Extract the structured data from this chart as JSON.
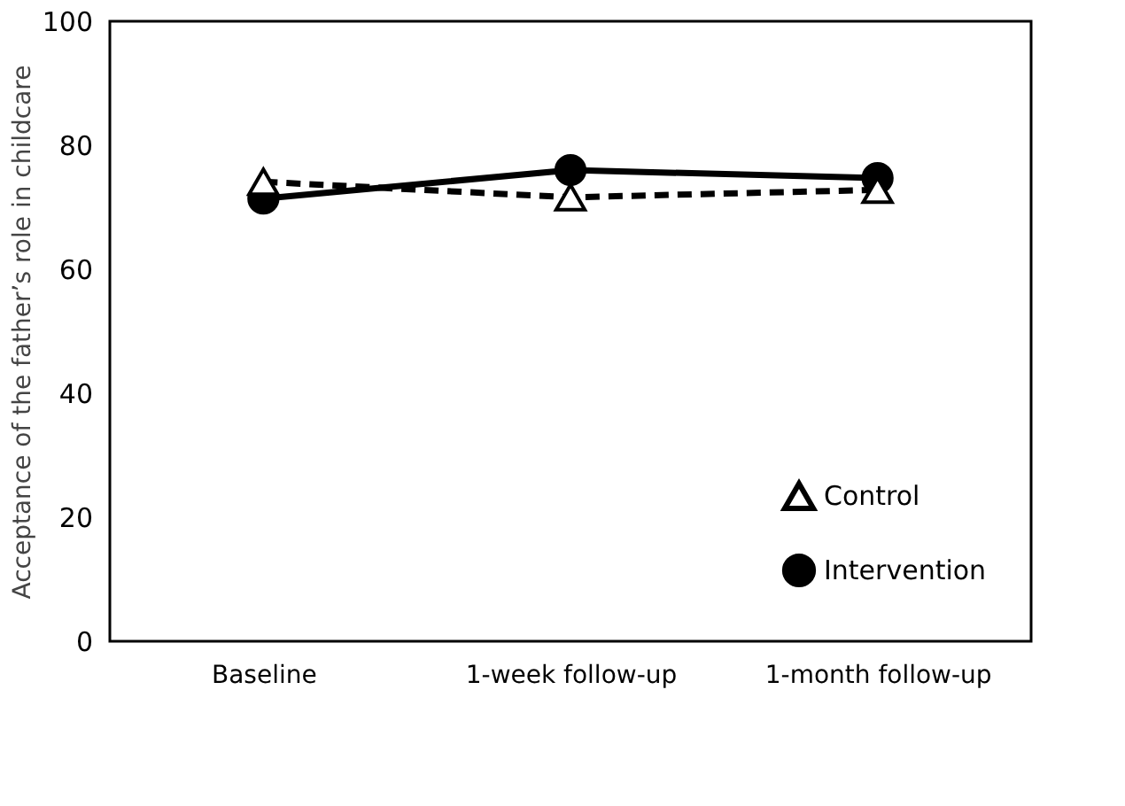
{
  "chart_data": {
    "type": "line",
    "ylabel": "Acceptance of the father’s role in childcare",
    "categories": [
      "Baseline",
      "1-week follow-up",
      "1-month follow-up"
    ],
    "series": [
      {
        "name": "Control",
        "color": "#000000",
        "values": [
          74.1,
          71.6,
          72.8
        ],
        "marker": "triangle",
        "line_style": "dashed"
      },
      {
        "name": "Intervention",
        "color": "#000000",
        "values": [
          71.4,
          76.0,
          74.7
        ],
        "marker": "circle",
        "line_style": "solid"
      }
    ],
    "ylim": [
      0,
      100
    ],
    "yticks": [
      0,
      20,
      40,
      60,
      80,
      100
    ],
    "grid": false,
    "legend": "bottom right"
  }
}
